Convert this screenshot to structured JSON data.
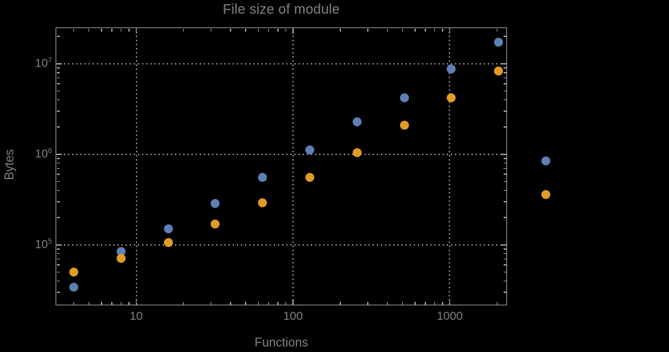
{
  "colors": {
    "background": "#000000",
    "text": "#828282",
    "frame": "#9e9e9e",
    "grid": "#8a8a8a"
  },
  "chart_data": {
    "type": "scatter",
    "title": "File size of module",
    "xlabel": "Functions",
    "ylabel": "Bytes",
    "x_scale": "log",
    "y_scale": "log",
    "grid": true,
    "legend": "none",
    "x_range": [
      3.06,
      2320
    ],
    "y_range": [
      21500,
      25200000
    ],
    "x_ticks": [
      {
        "value": 10,
        "label": "10"
      },
      {
        "value": 100,
        "label": "100"
      },
      {
        "value": 1000,
        "label": "1000"
      }
    ],
    "y_ticks": [
      {
        "value": 100000,
        "base": "10",
        "exp": "5"
      },
      {
        "value": 1000000,
        "base": "10",
        "exp": "6"
      },
      {
        "value": 10000000,
        "base": "10",
        "exp": "7"
      }
    ],
    "x": [
      4,
      8,
      16,
      32,
      64,
      128,
      256,
      512,
      1024,
      2048,
      4096
    ],
    "series": [
      {
        "name": "blue",
        "color": "#5e81b5",
        "values": [
          34000,
          85000,
          150000,
          285000,
          560000,
          1110000,
          2270000,
          4200000,
          8700000,
          17200000,
          840000
        ]
      },
      {
        "name": "orange",
        "color": "#e19c24",
        "values": [
          50000,
          71000,
          107000,
          170000,
          290000,
          560000,
          1050000,
          2100000,
          4200000,
          8300000,
          360000
        ]
      }
    ]
  }
}
